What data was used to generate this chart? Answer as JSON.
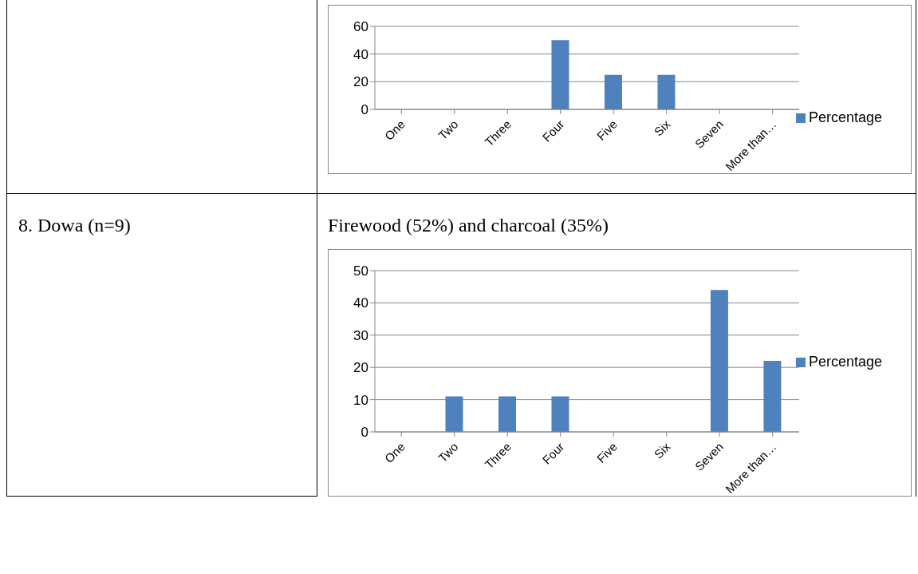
{
  "chart_data": [
    {
      "type": "bar",
      "categories": [
        "One",
        "Two",
        "Three",
        "Four",
        "Five",
        "Six",
        "Seven",
        "More than…"
      ],
      "series": [
        {
          "name": "Percentage",
          "color": "#4f81bd",
          "values": [
            0,
            0,
            0,
            50,
            25,
            25,
            0,
            0
          ]
        }
      ],
      "ylim": [
        0,
        60
      ],
      "yticks": [
        0,
        20,
        40,
        60
      ],
      "grid": "y",
      "legend": "right"
    },
    {
      "type": "other",
      "annotations": [
        "8. Dowa (n=9)"
      ]
    },
    {
      "type": "bar",
      "title": "Firewood (52%) and charcoal (35%)",
      "categories": [
        "One",
        "Two",
        "Three",
        "Four",
        "Five",
        "Six",
        "Seven",
        "More than…"
      ],
      "series": [
        {
          "name": "Percentage",
          "color": "#4f81bd",
          "values": [
            0,
            11,
            11,
            11,
            0,
            0,
            44,
            22
          ]
        }
      ],
      "ylim": [
        0,
        50
      ],
      "yticks": [
        0,
        10,
        20,
        30,
        40,
        50
      ],
      "grid": "y",
      "legend": "right"
    }
  ]
}
